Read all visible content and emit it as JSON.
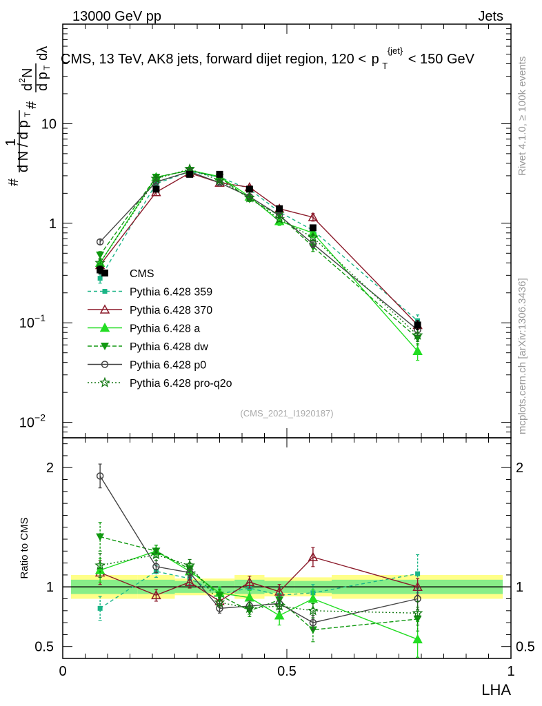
{
  "header": {
    "left": "13000 GeV pp",
    "right": "Jets",
    "rivet": "Rivet 4.1.0, ≥ 100k events",
    "mcplots": "mcplots.cern.ch [arXiv:1306.3436]",
    "analysis_id": "(CMS_2021_I1920187)"
  },
  "main_title": {
    "text": "CMS, 13 TeV, AK8 jets, forward dijet region, 120 <",
    "p": "p",
    "sub": "T",
    "sup": "{jet}",
    "tail": "< 150 GeV"
  },
  "ylabel": {
    "hash": "#",
    "one": "1",
    "dN": "d N / d p",
    "T": "T",
    "hash2": "#",
    "frac_num": "d",
    "frac_N": "N",
    "frac_den": "d p",
    "frac_T": "T",
    "dlambda": "dλ",
    "two": "2"
  },
  "colors": {
    "CMS": "#000000",
    "p359": "#1ab586",
    "p370": "#8b1a2a",
    "pa": "#22dd22",
    "pdw": "#119911",
    "pp0": "#444444",
    "pq2o": "#117711",
    "band_inner": "#88ee88",
    "band_outer": "#ffff88"
  },
  "chart_data": [
    {
      "type": "line",
      "panel": "main",
      "title": "CMS, 13 TeV, AK8 jets, forward dijet region, 120 < p_T^{jet} < 150 GeV",
      "xlabel": "LHA",
      "ylabel": "1/(dN/dp_T) d^2N/(dp_T dλ)",
      "yscale": "log",
      "xlim": [
        0,
        1
      ],
      "ylim": [
        0.007,
        100
      ],
      "yticks": [
        {
          "value": 0.01,
          "base": "10",
          "exp": "−2"
        },
        {
          "value": 0.1,
          "base": "10",
          "exp": "−1"
        },
        {
          "value": 1,
          "label": "1"
        },
        {
          "value": 10,
          "label": "10"
        }
      ],
      "x": [
        0.0833,
        0.2083,
        0.2833,
        0.35,
        0.4167,
        0.4833,
        0.5583,
        0.7917
      ],
      "series": [
        {
          "name": "CMS",
          "key": "CMS",
          "marker": "square",
          "dash": "",
          "values": [
            0.34,
            2.2,
            3.1,
            3.1,
            2.2,
            1.4,
            0.9,
            0.095
          ],
          "err": [
            0.03,
            0.1,
            0.1,
            0.1,
            0.08,
            0.05,
            0.04,
            0.01
          ]
        },
        {
          "name": "Pythia 6.428 359",
          "key": "p359",
          "marker": "square-small",
          "dash": "5,4",
          "values": [
            0.28,
            2.5,
            3.3,
            2.9,
            2.2,
            1.3,
            0.85,
            0.105
          ],
          "err": [
            0.03,
            0.1,
            0.1,
            0.1,
            0.1,
            0.07,
            0.06,
            0.015
          ]
        },
        {
          "name": "Pythia 6.428 370",
          "key": "p370",
          "marker": "triangle-open",
          "dash": "",
          "values": [
            0.38,
            2.05,
            3.2,
            2.55,
            2.3,
            1.4,
            1.15,
            0.095
          ],
          "err": [
            0.03,
            0.15,
            0.1,
            0.1,
            0.1,
            0.07,
            0.1,
            0.01
          ]
        },
        {
          "name": "Pythia 6.428 a",
          "key": "pa",
          "marker": "triangle",
          "dash": "",
          "values": [
            0.4,
            2.9,
            3.4,
            2.95,
            1.85,
            1.05,
            0.8,
            0.052
          ],
          "err": [
            0.03,
            0.12,
            0.12,
            0.12,
            0.1,
            0.1,
            0.08,
            0.01
          ]
        },
        {
          "name": "Pythia 6.428 dw",
          "key": "pdw",
          "marker": "triangle-down",
          "dash": "6,3",
          "values": [
            0.48,
            2.9,
            3.4,
            2.9,
            1.75,
            1.2,
            0.58,
            0.07
          ],
          "err": [
            0.04,
            0.12,
            0.12,
            0.1,
            0.1,
            0.06,
            0.06,
            0.01
          ]
        },
        {
          "name": "Pythia 6.428 p0",
          "key": "pp0",
          "marker": "circle-open",
          "dash": "",
          "values": [
            0.65,
            2.6,
            3.3,
            2.55,
            1.85,
            1.2,
            0.62,
            0.085
          ],
          "err": [
            0.04,
            0.1,
            0.1,
            0.1,
            0.08,
            0.06,
            0.05,
            0.01
          ]
        },
        {
          "name": "Pythia 6.428 pro-q2o",
          "key": "pq2o",
          "marker": "star",
          "dash": "2,3",
          "values": [
            0.4,
            2.8,
            3.5,
            2.7,
            1.8,
            1.1,
            0.72,
            0.075
          ],
          "err": [
            0.04,
            0.1,
            0.1,
            0.1,
            0.08,
            0.06,
            0.05,
            0.01
          ]
        }
      ]
    },
    {
      "type": "line",
      "panel": "ratio",
      "xlabel": "LHA",
      "ylabel": "Ratio to CMS",
      "xlim": [
        0,
        1
      ],
      "ylim": [
        0.4,
        2.25
      ],
      "yticks": [
        0.5,
        1,
        2
      ],
      "xticks": [
        {
          "value": 0,
          "label": "0"
        },
        {
          "value": 0.5,
          "label": "0.5"
        },
        {
          "value": 1,
          "label": "1"
        }
      ],
      "x": [
        0.0833,
        0.2083,
        0.2833,
        0.35,
        0.4167,
        0.4833,
        0.5583,
        0.7917
      ],
      "band_edges": [
        0,
        0.1667,
        0.25,
        0.3167,
        0.3833,
        0.45,
        0.5167,
        0.6,
        1.0
      ],
      "band_inner": [
        0.06,
        0.06,
        0.05,
        0.05,
        0.06,
        0.05,
        0.05,
        0.06
      ],
      "band_outer": [
        0.1,
        0.1,
        0.07,
        0.07,
        0.1,
        0.08,
        0.08,
        0.1
      ],
      "series": [
        {
          "name": "Pythia 6.428 359",
          "key": "p359",
          "marker": "square-small",
          "dash": "5,4",
          "values": [
            0.82,
            1.13,
            1.07,
            0.94,
            0.99,
            0.93,
            0.95,
            1.11
          ],
          "err": [
            0.1,
            0.05,
            0.05,
            0.05,
            0.05,
            0.06,
            0.07,
            0.16
          ]
        },
        {
          "name": "Pythia 6.428 370",
          "key": "p370",
          "marker": "triangle-open",
          "dash": "",
          "values": [
            1.12,
            0.93,
            1.04,
            0.88,
            1.04,
            0.96,
            1.25,
            1.0
          ],
          "err": [
            0.1,
            0.05,
            0.05,
            0.04,
            0.05,
            0.06,
            0.08,
            0.07
          ]
        },
        {
          "name": "Pythia 6.428 a",
          "key": "pa",
          "marker": "triangle",
          "dash": "",
          "values": [
            1.14,
            1.3,
            1.13,
            0.95,
            0.91,
            0.76,
            0.9,
            0.56
          ],
          "err": [
            0.1,
            0.05,
            0.05,
            0.05,
            0.06,
            0.08,
            0.08,
            0.15
          ]
        },
        {
          "name": "Pythia 6.428 dw",
          "key": "pdw",
          "marker": "triangle-down",
          "dash": "6,3",
          "values": [
            1.42,
            1.3,
            1.15,
            0.93,
            0.8,
            0.89,
            0.64,
            0.73
          ],
          "err": [
            0.12,
            0.05,
            0.05,
            0.05,
            0.05,
            0.05,
            0.1,
            0.1
          ]
        },
        {
          "name": "Pythia 6.428 p0",
          "key": "pp0",
          "marker": "circle-open",
          "dash": "",
          "values": [
            1.93,
            1.17,
            1.12,
            0.82,
            0.84,
            0.86,
            0.7,
            0.9
          ],
          "err": [
            0.1,
            0.05,
            0.04,
            0.04,
            0.04,
            0.05,
            0.06,
            0.09
          ]
        },
        {
          "name": "Pythia 6.428 pro-q2o",
          "key": "pq2o",
          "marker": "star",
          "dash": "2,3",
          "values": [
            1.18,
            1.27,
            1.18,
            0.87,
            0.82,
            0.84,
            0.8,
            0.78
          ],
          "err": [
            0.1,
            0.05,
            0.05,
            0.04,
            0.05,
            0.05,
            0.06,
            0.1
          ]
        }
      ]
    }
  ],
  "legend": {
    "items": [
      {
        "label": "CMS",
        "key": "CMS",
        "marker": "square",
        "dash": ""
      },
      {
        "label": "Pythia 6.428 359",
        "key": "p359",
        "marker": "square-small",
        "dash": "5,4"
      },
      {
        "label": "Pythia 6.428 370",
        "key": "p370",
        "marker": "triangle-open",
        "dash": ""
      },
      {
        "label": "Pythia 6.428 a",
        "key": "pa",
        "marker": "triangle",
        "dash": ""
      },
      {
        "label": "Pythia 6.428 dw",
        "key": "pdw",
        "marker": "triangle-down",
        "dash": "6,3"
      },
      {
        "label": "Pythia 6.428 p0",
        "key": "pp0",
        "marker": "circle-open",
        "dash": ""
      },
      {
        "label": "Pythia 6.428 pro-q2o",
        "key": "pq2o",
        "marker": "star",
        "dash": "2,3"
      }
    ]
  }
}
